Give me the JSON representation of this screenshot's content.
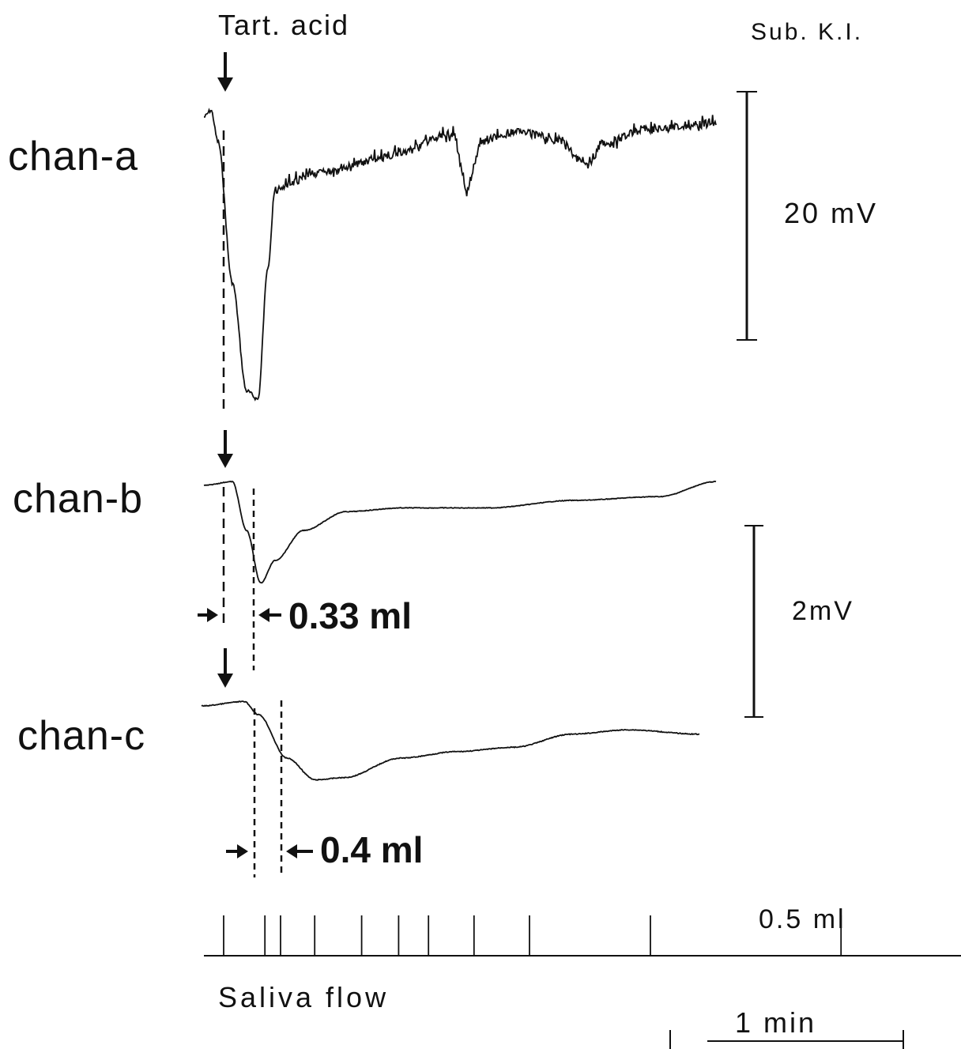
{
  "labels": {
    "stimulus": "Tart. acid",
    "subject": "Sub. K.I.",
    "chan_a": "chan-a",
    "chan_b": "chan-b",
    "chan_c": "chan-c",
    "scale_a": "20 mV",
    "scale_bc": "2mV",
    "delay_b": "0.33 ml",
    "delay_c": "0.4 ml",
    "flow_unit": "0.5 ml",
    "flow_label": "Saliva flow",
    "time_scale": "1 min"
  },
  "chart_data": {
    "type": "line",
    "title": "",
    "xlabel": "Saliva flow",
    "time_scale": "1 min",
    "stimulus": "Tart. acid",
    "series": [
      {
        "name": "chan-a",
        "scale": "20 mV",
        "trace_mV": [
          [
            0.0,
            0.0
          ],
          [
            0.05,
            0.4
          ],
          [
            0.1,
            -1.5
          ],
          [
            0.2,
            -10.0
          ],
          [
            0.3,
            -16.5
          ],
          [
            0.38,
            -17.0
          ],
          [
            0.45,
            -9.0
          ],
          [
            0.5,
            -4.5
          ],
          [
            0.6,
            -4.0
          ],
          [
            0.8,
            -3.4
          ],
          [
            1.0,
            -3.0
          ],
          [
            1.2,
            -2.6
          ],
          [
            1.4,
            -2.1
          ],
          [
            1.6,
            -1.4
          ],
          [
            1.75,
            -1.0
          ],
          [
            1.85,
            -4.5
          ],
          [
            1.95,
            -1.5
          ],
          [
            2.2,
            -0.9
          ],
          [
            2.5,
            -1.4
          ],
          [
            2.7,
            -3.0
          ],
          [
            2.8,
            -1.6
          ],
          [
            3.1,
            -0.8
          ],
          [
            3.3,
            -0.6
          ],
          [
            3.6,
            -0.4
          ]
        ]
      },
      {
        "name": "chan-b",
        "scale": "2mV",
        "delay": "0.33 ml",
        "trace_mV": [
          [
            0.0,
            0.0
          ],
          [
            0.2,
            0.05
          ],
          [
            0.3,
            -0.6
          ],
          [
            0.4,
            -1.3
          ],
          [
            0.5,
            -1.0
          ],
          [
            0.7,
            -0.6
          ],
          [
            1.0,
            -0.35
          ],
          [
            1.4,
            -0.3
          ],
          [
            2.0,
            -0.3
          ],
          [
            2.6,
            -0.2
          ],
          [
            3.2,
            -0.15
          ],
          [
            3.6,
            0.05
          ]
        ]
      },
      {
        "name": "chan-c",
        "scale": "2mV",
        "delay": "0.4 ml",
        "trace_mV": [
          [
            0.0,
            0.0
          ],
          [
            0.3,
            0.1
          ],
          [
            0.4,
            -0.2
          ],
          [
            0.6,
            -1.2
          ],
          [
            0.8,
            -1.7
          ],
          [
            1.0,
            -1.65
          ],
          [
            1.4,
            -1.2
          ],
          [
            1.8,
            -1.05
          ],
          [
            2.2,
            -0.95
          ],
          [
            2.6,
            -0.65
          ],
          [
            3.0,
            -0.55
          ],
          [
            3.5,
            -0.65
          ]
        ]
      }
    ],
    "saliva_flow": {
      "unit": "0.5 ml",
      "ticks": [
        0.0,
        0.29,
        0.4,
        0.64,
        0.97,
        1.23,
        1.44,
        1.76,
        2.15,
        3.0,
        4.34
      ]
    }
  }
}
